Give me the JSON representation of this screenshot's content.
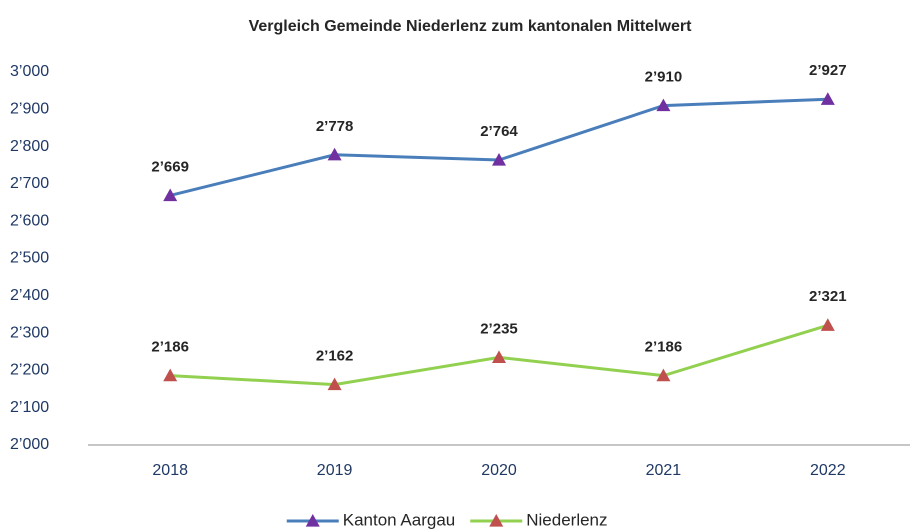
{
  "chart_data": {
    "type": "line",
    "title": "Vergleich Gemeinde Niederlenz zum kantonalen Mittelwert",
    "categories": [
      "2018",
      "2019",
      "2020",
      "2021",
      "2022"
    ],
    "series": [
      {
        "name": "Kanton Aargau",
        "color": "#4a7ebb",
        "marker_color": "#7030a0",
        "values": [
          2669,
          2778,
          2764,
          2910,
          2927
        ],
        "value_labels": [
          "2’669",
          "2’778",
          "2’764",
          "2’910",
          "2’927"
        ]
      },
      {
        "name": "Niederlenz",
        "color": "#92d050",
        "marker_color": "#c0504d",
        "values": [
          2186,
          2162,
          2235,
          2186,
          2321
        ],
        "value_labels": [
          "2’186",
          "2’162",
          "2’235",
          "2’186",
          "2’321"
        ]
      }
    ],
    "ylim": [
      2000,
      3000
    ],
    "yticks": [
      {
        "value": 2000,
        "label": "2’000"
      },
      {
        "value": 2100,
        "label": "2’100"
      },
      {
        "value": 2200,
        "label": "2’200"
      },
      {
        "value": 2300,
        "label": "2’300"
      },
      {
        "value": 2400,
        "label": "2’400"
      },
      {
        "value": 2500,
        "label": "2’500"
      },
      {
        "value": 2600,
        "label": "2’600"
      },
      {
        "value": 2700,
        "label": "2’700"
      },
      {
        "value": 2800,
        "label": "2’800"
      },
      {
        "value": 2900,
        "label": "2’900"
      },
      {
        "value": 3000,
        "label": "3’000"
      }
    ],
    "grid": false,
    "legend": "bottom"
  }
}
